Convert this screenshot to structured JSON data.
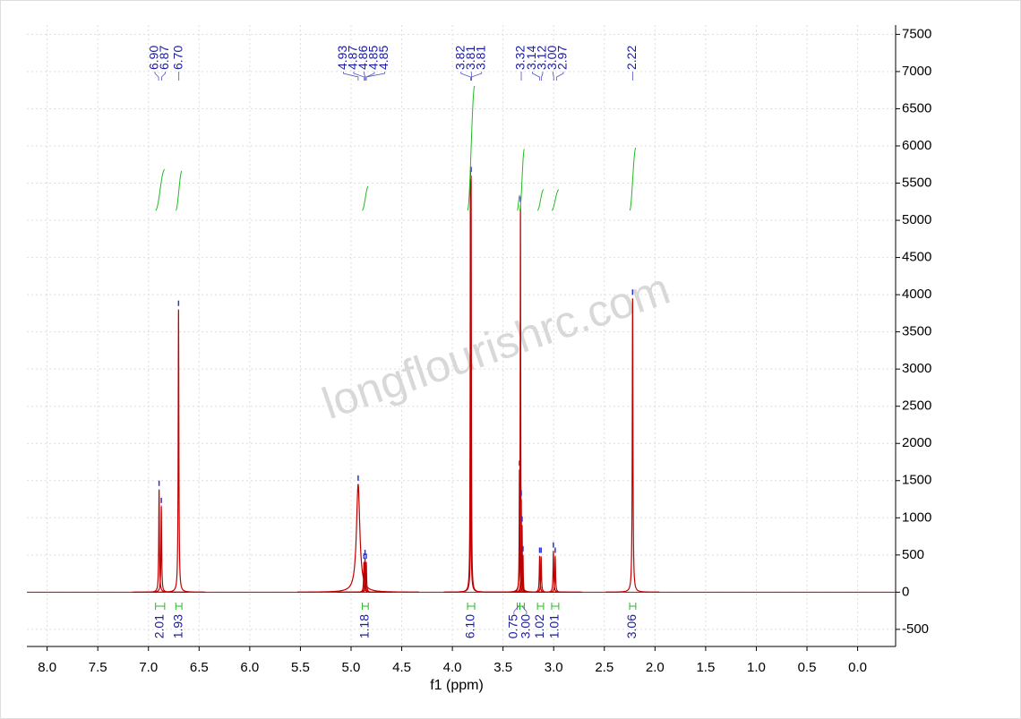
{
  "chart_data": {
    "type": "nmr",
    "xlabel": "f1 (ppm)",
    "watermark": "longflourishrc.com",
    "xlim": [
      8.2,
      -0.375
    ],
    "xticks": [
      {
        "value": 8,
        "label": "8.0"
      },
      7.5,
      {
        "value": 7,
        "label": "7.0"
      },
      6.5,
      {
        "value": 6,
        "label": "6.0"
      },
      5.5,
      {
        "value": 5,
        "label": "5.0"
      },
      4.5,
      {
        "value": 4,
        "label": "4.0"
      },
      3.5,
      {
        "value": 3,
        "label": "3.0"
      },
      2.5,
      {
        "value": 2,
        "label": "2.0"
      },
      1.5,
      {
        "value": 1,
        "label": "1.0"
      },
      0.5,
      {
        "value": 0,
        "label": "0.0"
      }
    ],
    "ylim": [
      -730,
      7625
    ],
    "yticks": [
      -500,
      0,
      500,
      1000,
      1500,
      2000,
      2500,
      3000,
      3500,
      4000,
      4500,
      5000,
      5500,
      6000,
      6500,
      7000,
      7500
    ],
    "grid": true,
    "color": "#c00000",
    "peaks": {
      "ppm": [
        6.895,
        6.873,
        6.703,
        4.93,
        4.873,
        4.862,
        4.85,
        3.822,
        3.815,
        3.338,
        3.328,
        3.32,
        3.312,
        3.303,
        3.139,
        3.124,
        3.003,
        2.985,
        2.221
      ],
      "heights": [
        1380,
        1150,
        3800,
        1450,
        400,
        450,
        400,
        5550,
        5600,
        1650,
        5200,
        1250,
        900,
        500,
        480,
        480,
        550,
        480,
        3950
      ],
      "linewidths": [
        0.004,
        0.004,
        0.004,
        0.02,
        0.004,
        0.004,
        0.004,
        0.003,
        0.003,
        0.003,
        0.003,
        0.003,
        0.003,
        0.003,
        0.004,
        0.004,
        0.004,
        0.004,
        0.004
      ]
    },
    "peak_labels": [
      "6.90",
      "6.87",
      "6.70",
      "4.93",
      "4.87",
      "4.86",
      "4.85",
      "4.85",
      "3.82",
      "3.81",
      "3.81",
      "3.32",
      "3.14",
      "3.12",
      "3.00",
      "2.97",
      "2.22"
    ],
    "integrals": {
      "ranges": [
        [
          6.93,
          6.84
        ],
        [
          6.73,
          6.67
        ],
        [
          4.89,
          4.83
        ],
        [
          3.85,
          3.78
        ],
        [
          3.36,
          3.335
        ],
        [
          3.335,
          3.29
        ],
        [
          3.16,
          3.1
        ],
        [
          3.02,
          2.95
        ],
        [
          2.25,
          2.19
        ]
      ],
      "values": [
        2.01,
        1.93,
        1.18,
        6.1,
        0.75,
        3,
        1.02,
        1.01,
        3.06
      ],
      "value_labels": [
        "2.01",
        "1.93",
        "1.18",
        "6.10",
        "0.75",
        "3.00",
        "1.02",
        "1.01",
        "3.06"
      ],
      "color": "#22bb22"
    }
  }
}
